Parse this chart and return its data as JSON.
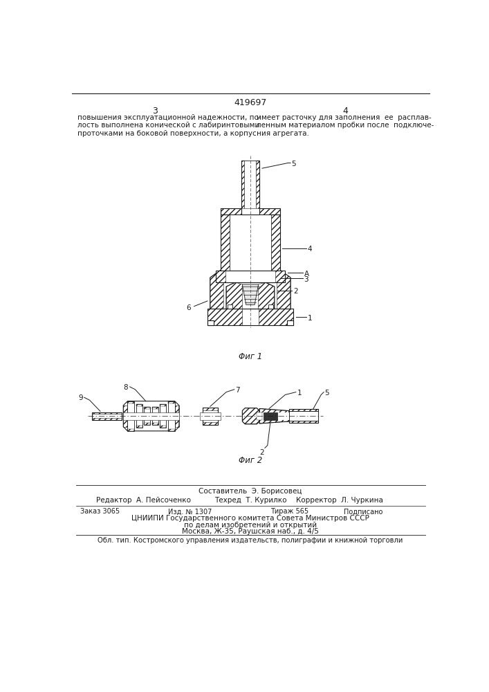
{
  "patent_number": "419697",
  "page_left": "3",
  "page_right": "4",
  "text_left": "повышения эксплуатационной надежности, по-\nлость выполнена конической с лабиринтовыми\nпроточками на боковой поверхности, а корпус",
  "text_right": "имеет расточку для заполнения  ее  расплав-\nленным материалом пробки после  подключе-\nния агрегата.",
  "fig1_label": "Φиг 1",
  "fig2_label": "Φиг 2",
  "footer_composer": "Составитель  Э. Борисовец",
  "footer_editor": "Редактор  А. Пейсоченко",
  "footer_tech": "Техред  Т. Курилко",
  "footer_corrector": "Корректор  Л. Чуркина",
  "footer_zakaz": "Заказ 3065",
  "footer_izd": "Изд. № 1307",
  "footer_tirazh": "Тираж 565",
  "footer_podpis": "Подписано",
  "footer_cniipii": "ЦНИИПИ Государственного комитета Совета Министров СССР",
  "footer_line2": "по делам изобретений и открытий",
  "footer_line3": "Москва, Ж-35, Раушская наб., д. 4/5",
  "footer_obl": "Обл. тип. Костромского управления издательств, полиграфии и книжной торговли",
  "bg_color": "#ffffff",
  "line_color": "#1a1a1a",
  "hatch_color": "#444444",
  "text_color": "#1a1a1a"
}
